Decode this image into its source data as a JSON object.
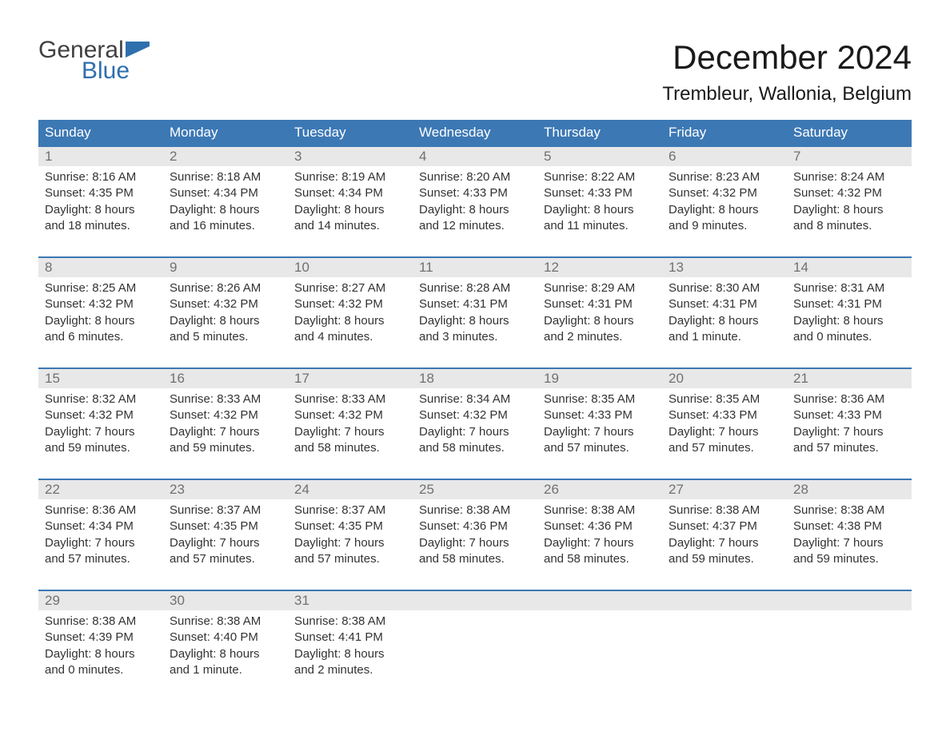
{
  "logo": {
    "word1": "General",
    "word2": "Blue"
  },
  "title": {
    "month": "December 2024",
    "location": "Trembleur, Wallonia, Belgium"
  },
  "colors": {
    "header_bg": "#3c78b4",
    "header_text": "#ffffff",
    "daynum_bg": "#e8e8e8",
    "daynum_text": "#707070",
    "body_text": "#333333",
    "logo_gray": "#404040",
    "logo_blue": "#2f6fae",
    "week_border": "#3c78b4",
    "page_bg": "#ffffff"
  },
  "typography": {
    "month_fontsize": 42,
    "location_fontsize": 24,
    "logo_fontsize": 30,
    "dow_fontsize": 17,
    "daynum_fontsize": 17,
    "detail_fontsize": 15
  },
  "calendar": {
    "type": "table",
    "days_of_week": [
      "Sunday",
      "Monday",
      "Tuesday",
      "Wednesday",
      "Thursday",
      "Friday",
      "Saturday"
    ],
    "weeks": [
      [
        {
          "num": "1",
          "sunrise": "Sunrise: 8:16 AM",
          "sunset": "Sunset: 4:35 PM",
          "dl1": "Daylight: 8 hours",
          "dl2": "and 18 minutes."
        },
        {
          "num": "2",
          "sunrise": "Sunrise: 8:18 AM",
          "sunset": "Sunset: 4:34 PM",
          "dl1": "Daylight: 8 hours",
          "dl2": "and 16 minutes."
        },
        {
          "num": "3",
          "sunrise": "Sunrise: 8:19 AM",
          "sunset": "Sunset: 4:34 PM",
          "dl1": "Daylight: 8 hours",
          "dl2": "and 14 minutes."
        },
        {
          "num": "4",
          "sunrise": "Sunrise: 8:20 AM",
          "sunset": "Sunset: 4:33 PM",
          "dl1": "Daylight: 8 hours",
          "dl2": "and 12 minutes."
        },
        {
          "num": "5",
          "sunrise": "Sunrise: 8:22 AM",
          "sunset": "Sunset: 4:33 PM",
          "dl1": "Daylight: 8 hours",
          "dl2": "and 11 minutes."
        },
        {
          "num": "6",
          "sunrise": "Sunrise: 8:23 AM",
          "sunset": "Sunset: 4:32 PM",
          "dl1": "Daylight: 8 hours",
          "dl2": "and 9 minutes."
        },
        {
          "num": "7",
          "sunrise": "Sunrise: 8:24 AM",
          "sunset": "Sunset: 4:32 PM",
          "dl1": "Daylight: 8 hours",
          "dl2": "and 8 minutes."
        }
      ],
      [
        {
          "num": "8",
          "sunrise": "Sunrise: 8:25 AM",
          "sunset": "Sunset: 4:32 PM",
          "dl1": "Daylight: 8 hours",
          "dl2": "and 6 minutes."
        },
        {
          "num": "9",
          "sunrise": "Sunrise: 8:26 AM",
          "sunset": "Sunset: 4:32 PM",
          "dl1": "Daylight: 8 hours",
          "dl2": "and 5 minutes."
        },
        {
          "num": "10",
          "sunrise": "Sunrise: 8:27 AM",
          "sunset": "Sunset: 4:32 PM",
          "dl1": "Daylight: 8 hours",
          "dl2": "and 4 minutes."
        },
        {
          "num": "11",
          "sunrise": "Sunrise: 8:28 AM",
          "sunset": "Sunset: 4:31 PM",
          "dl1": "Daylight: 8 hours",
          "dl2": "and 3 minutes."
        },
        {
          "num": "12",
          "sunrise": "Sunrise: 8:29 AM",
          "sunset": "Sunset: 4:31 PM",
          "dl1": "Daylight: 8 hours",
          "dl2": "and 2 minutes."
        },
        {
          "num": "13",
          "sunrise": "Sunrise: 8:30 AM",
          "sunset": "Sunset: 4:31 PM",
          "dl1": "Daylight: 8 hours",
          "dl2": "and 1 minute."
        },
        {
          "num": "14",
          "sunrise": "Sunrise: 8:31 AM",
          "sunset": "Sunset: 4:31 PM",
          "dl1": "Daylight: 8 hours",
          "dl2": "and 0 minutes."
        }
      ],
      [
        {
          "num": "15",
          "sunrise": "Sunrise: 8:32 AM",
          "sunset": "Sunset: 4:32 PM",
          "dl1": "Daylight: 7 hours",
          "dl2": "and 59 minutes."
        },
        {
          "num": "16",
          "sunrise": "Sunrise: 8:33 AM",
          "sunset": "Sunset: 4:32 PM",
          "dl1": "Daylight: 7 hours",
          "dl2": "and 59 minutes."
        },
        {
          "num": "17",
          "sunrise": "Sunrise: 8:33 AM",
          "sunset": "Sunset: 4:32 PM",
          "dl1": "Daylight: 7 hours",
          "dl2": "and 58 minutes."
        },
        {
          "num": "18",
          "sunrise": "Sunrise: 8:34 AM",
          "sunset": "Sunset: 4:32 PM",
          "dl1": "Daylight: 7 hours",
          "dl2": "and 58 minutes."
        },
        {
          "num": "19",
          "sunrise": "Sunrise: 8:35 AM",
          "sunset": "Sunset: 4:33 PM",
          "dl1": "Daylight: 7 hours",
          "dl2": "and 57 minutes."
        },
        {
          "num": "20",
          "sunrise": "Sunrise: 8:35 AM",
          "sunset": "Sunset: 4:33 PM",
          "dl1": "Daylight: 7 hours",
          "dl2": "and 57 minutes."
        },
        {
          "num": "21",
          "sunrise": "Sunrise: 8:36 AM",
          "sunset": "Sunset: 4:33 PM",
          "dl1": "Daylight: 7 hours",
          "dl2": "and 57 minutes."
        }
      ],
      [
        {
          "num": "22",
          "sunrise": "Sunrise: 8:36 AM",
          "sunset": "Sunset: 4:34 PM",
          "dl1": "Daylight: 7 hours",
          "dl2": "and 57 minutes."
        },
        {
          "num": "23",
          "sunrise": "Sunrise: 8:37 AM",
          "sunset": "Sunset: 4:35 PM",
          "dl1": "Daylight: 7 hours",
          "dl2": "and 57 minutes."
        },
        {
          "num": "24",
          "sunrise": "Sunrise: 8:37 AM",
          "sunset": "Sunset: 4:35 PM",
          "dl1": "Daylight: 7 hours",
          "dl2": "and 57 minutes."
        },
        {
          "num": "25",
          "sunrise": "Sunrise: 8:38 AM",
          "sunset": "Sunset: 4:36 PM",
          "dl1": "Daylight: 7 hours",
          "dl2": "and 58 minutes."
        },
        {
          "num": "26",
          "sunrise": "Sunrise: 8:38 AM",
          "sunset": "Sunset: 4:36 PM",
          "dl1": "Daylight: 7 hours",
          "dl2": "and 58 minutes."
        },
        {
          "num": "27",
          "sunrise": "Sunrise: 8:38 AM",
          "sunset": "Sunset: 4:37 PM",
          "dl1": "Daylight: 7 hours",
          "dl2": "and 59 minutes."
        },
        {
          "num": "28",
          "sunrise": "Sunrise: 8:38 AM",
          "sunset": "Sunset: 4:38 PM",
          "dl1": "Daylight: 7 hours",
          "dl2": "and 59 minutes."
        }
      ],
      [
        {
          "num": "29",
          "sunrise": "Sunrise: 8:38 AM",
          "sunset": "Sunset: 4:39 PM",
          "dl1": "Daylight: 8 hours",
          "dl2": "and 0 minutes."
        },
        {
          "num": "30",
          "sunrise": "Sunrise: 8:38 AM",
          "sunset": "Sunset: 4:40 PM",
          "dl1": "Daylight: 8 hours",
          "dl2": "and 1 minute."
        },
        {
          "num": "31",
          "sunrise": "Sunrise: 8:38 AM",
          "sunset": "Sunset: 4:41 PM",
          "dl1": "Daylight: 8 hours",
          "dl2": "and 2 minutes."
        },
        {
          "num": "",
          "sunrise": "",
          "sunset": "",
          "dl1": "",
          "dl2": ""
        },
        {
          "num": "",
          "sunrise": "",
          "sunset": "",
          "dl1": "",
          "dl2": ""
        },
        {
          "num": "",
          "sunrise": "",
          "sunset": "",
          "dl1": "",
          "dl2": ""
        },
        {
          "num": "",
          "sunrise": "",
          "sunset": "",
          "dl1": "",
          "dl2": ""
        }
      ]
    ]
  }
}
